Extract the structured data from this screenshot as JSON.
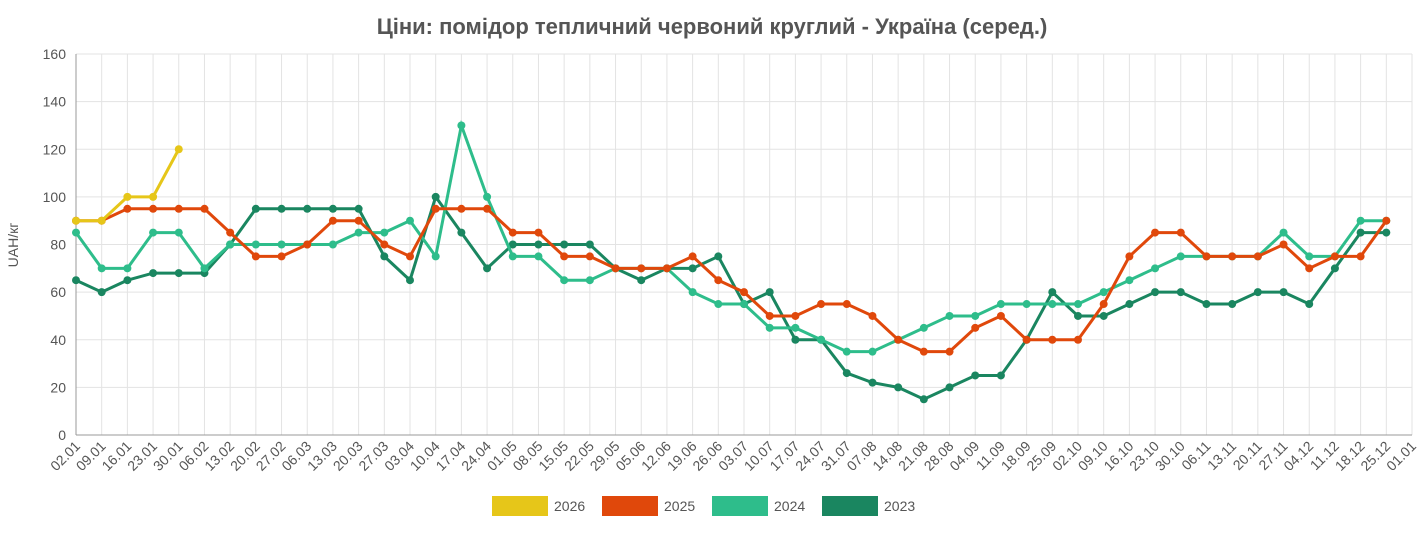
{
  "chart_data": {
    "type": "line",
    "title": "Ціни: помідор тепличний червоний круглий - Україна (серед.)",
    "y_label": "UAH/кг",
    "categories": [
      "02.01",
      "09.01",
      "16.01",
      "23.01",
      "30.01",
      "06.02",
      "13.02",
      "20.02",
      "27.02",
      "06.03",
      "13.03",
      "20.03",
      "27.03",
      "03.04",
      "10.04",
      "17.04",
      "24.04",
      "01.05",
      "08.05",
      "15.05",
      "22.05",
      "29.05",
      "05.06",
      "12.06",
      "19.06",
      "26.06",
      "03.07",
      "10.07",
      "17.07",
      "24.07",
      "31.07",
      "07.08",
      "14.08",
      "21.08",
      "28.08",
      "04.09",
      "11.09",
      "18.09",
      "25.09",
      "02.10",
      "09.10",
      "16.10",
      "23.10",
      "30.10",
      "06.11",
      "13.11",
      "20.11",
      "27.11",
      "04.12",
      "11.12",
      "18.12",
      "25.12",
      "01.01"
    ],
    "series": [
      {
        "name": "2026",
        "color": "#e6c619",
        "values": [
          90,
          90,
          100,
          100,
          120,
          null,
          null,
          null,
          null,
          null,
          null,
          null,
          null,
          null,
          null,
          null,
          null,
          null,
          null,
          null,
          null,
          null,
          null,
          null,
          null,
          null,
          null,
          null,
          null,
          null,
          null,
          null,
          null,
          null,
          null,
          null,
          null,
          null,
          null,
          null,
          null,
          null,
          null,
          null,
          null,
          null,
          null,
          null,
          null,
          null,
          null,
          null,
          null
        ]
      },
      {
        "name": "2025",
        "color": "#e0480b",
        "values": [
          90,
          90,
          95,
          95,
          95,
          95,
          85,
          75,
          75,
          80,
          90,
          90,
          80,
          75,
          95,
          95,
          95,
          85,
          85,
          75,
          75,
          70,
          70,
          70,
          75,
          65,
          60,
          50,
          50,
          55,
          55,
          50,
          40,
          35,
          35,
          45,
          50,
          40,
          40,
          40,
          55,
          75,
          85,
          85,
          75,
          75,
          75,
          80,
          70,
          75,
          75,
          90,
          null
        ]
      },
      {
        "name": "2024",
        "color": "#2ebd8b",
        "values": [
          85,
          70,
          70,
          85,
          85,
          70,
          80,
          80,
          80,
          80,
          80,
          85,
          85,
          90,
          75,
          130,
          100,
          75,
          75,
          65,
          65,
          70,
          70,
          70,
          60,
          55,
          55,
          45,
          45,
          40,
          35,
          35,
          40,
          45,
          50,
          50,
          55,
          55,
          55,
          55,
          60,
          65,
          70,
          75,
          75,
          75,
          75,
          85,
          75,
          75,
          90,
          90,
          null
        ]
      },
      {
        "name": "2023",
        "color": "#1a8660",
        "values": [
          65,
          60,
          65,
          68,
          68,
          68,
          80,
          95,
          95,
          95,
          95,
          95,
          75,
          65,
          100,
          85,
          70,
          80,
          80,
          80,
          80,
          70,
          65,
          70,
          70,
          75,
          55,
          60,
          40,
          40,
          26,
          22,
          20,
          15,
          20,
          25,
          25,
          40,
          60,
          50,
          50,
          55,
          60,
          60,
          55,
          55,
          60,
          60,
          55,
          70,
          85,
          85,
          null
        ]
      }
    ],
    "ylim": [
      0,
      160
    ],
    "yticks": [
      0,
      20,
      40,
      60,
      80,
      100,
      120,
      140,
      160
    ],
    "grid": true,
    "legend": "bottom"
  }
}
